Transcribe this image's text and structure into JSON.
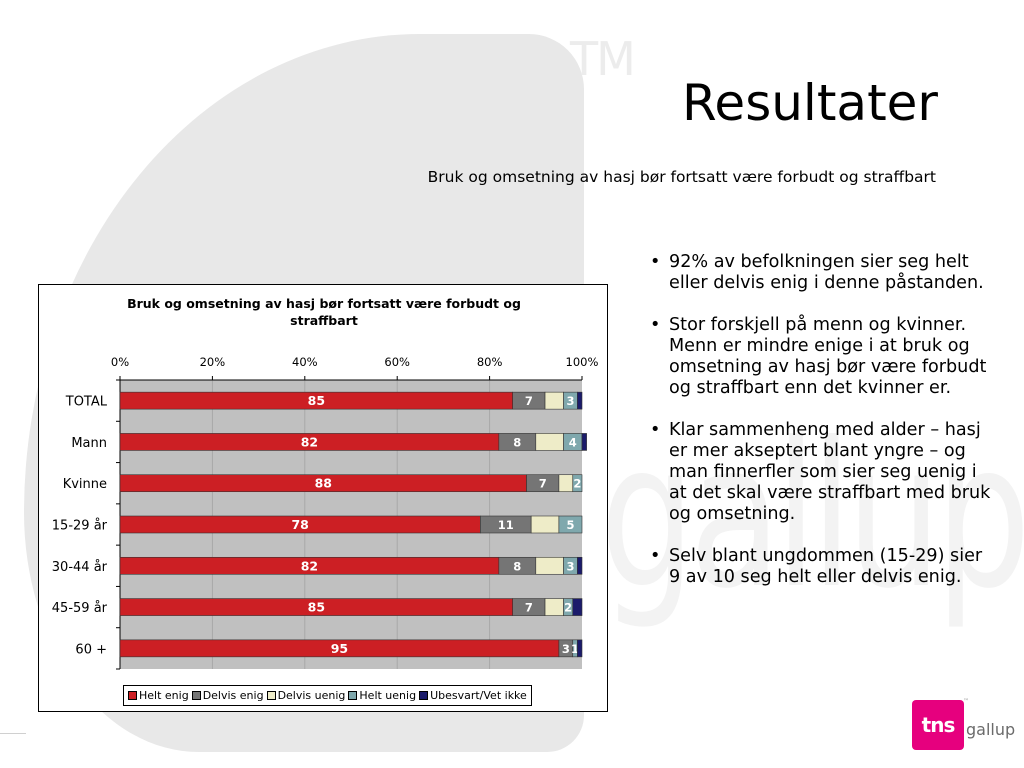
{
  "slide": {
    "title": "Resultater",
    "subtitle": "Bruk og omsetning av hasj bør fortsatt være forbudt og straffbart",
    "bullets": [
      "92% av befolkningen sier seg helt eller delvis enig i denne påstanden.",
      "Stor forskjell på menn og kvinner. Menn er mindre enige i at bruk og omsetning av hasj bør være forbudt og straffbart enn det kvinner er.",
      "Klar sammenheng med alder – hasj er mer akseptert blant yngre – og man finnerfler som sier seg uenig i at det skal være straffbart med bruk og omsetning.",
      "Selv blant ungdommen (15-29) sier 9 av 10 seg helt eller delvis enig."
    ],
    "background_marks": {
      "tm": "TM",
      "watermark": "gallup"
    }
  },
  "logo": {
    "brand": "tns",
    "name": "gallup",
    "tm": "™",
    "color": "#e6007e"
  },
  "chart_data": {
    "type": "bar",
    "orientation": "horizontal",
    "stacked": "percent",
    "title": "Bruk og omsetning av hasj bør fortsatt være forbudt og straffbart",
    "x_axis_position": "top",
    "x_ticks": [
      "0%",
      "20%",
      "40%",
      "60%",
      "80%",
      "100%"
    ],
    "xlim": [
      0,
      100
    ],
    "grid": true,
    "legend_position": "bottom",
    "categories": [
      "TOTAL",
      "Mann",
      "Kvinne",
      "15-29 år",
      "30-44 år",
      "45-59 år",
      "60 +"
    ],
    "series": [
      {
        "name": "Helt enig",
        "color": "#cc1f24",
        "values": [
          85,
          82,
          88,
          78,
          82,
          85,
          95
        ]
      },
      {
        "name": "Delvis enig",
        "color": "#757575",
        "values": [
          7,
          8,
          7,
          11,
          8,
          7,
          3
        ]
      },
      {
        "name": "Delvis uenig",
        "color": "#eeecc8",
        "values": [
          4,
          6,
          3,
          6,
          6,
          4,
          0
        ]
      },
      {
        "name": "Helt uenig",
        "color": "#7fa8ad",
        "values": [
          3,
          4,
          2,
          5,
          3,
          2,
          1
        ]
      },
      {
        "name": "Ubesvart/Vet ikke",
        "color": "#1b1b6b",
        "values": [
          1,
          1,
          0,
          0,
          1,
          2,
          1
        ]
      }
    ],
    "data_labels": [
      [
        "85",
        "7",
        "",
        "3",
        ""
      ],
      [
        "82",
        "8",
        "",
        "4",
        ""
      ],
      [
        "88",
        "7",
        "",
        "2",
        ""
      ],
      [
        "78",
        "11",
        "",
        "5",
        ""
      ],
      [
        "82",
        "8",
        "",
        "3",
        ""
      ],
      [
        "85",
        "7",
        "",
        "2",
        ""
      ],
      [
        "95",
        "3",
        "",
        "1",
        ""
      ]
    ]
  }
}
